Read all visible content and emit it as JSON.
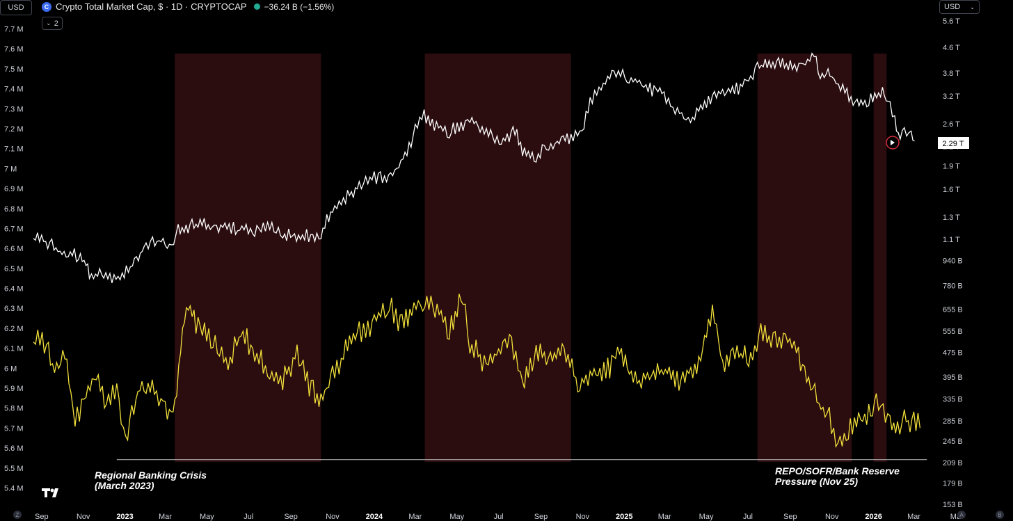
{
  "header": {
    "left_unit": "USD",
    "right_unit": "USD",
    "symbol_title": "Crypto Total Market Cap, $ · 1D · CRYPTOCAP",
    "change_text": "−36.24 B (−1.56%)",
    "collapse_count": "2",
    "icons": [
      "cryptocap-coin-icon",
      "market-status-dot-icon",
      "chevron-down-icon",
      "tradingview-logo-icon"
    ]
  },
  "annotations": {
    "left": [
      "Regional Banking Crisis",
      "(March 2023)"
    ],
    "right": [
      "REPO/SOFR/Bank Reserve",
      "Pressure (Nov 25)"
    ]
  },
  "corner_labels": {
    "bottom_left": "Z",
    "bottom_right_a": "A",
    "bottom_right_b": "B"
  },
  "colors": {
    "white_series": "#ffffff",
    "yellow_series": "#f2e03a",
    "shaded_region": "#2b0d10",
    "last_price_circle": "#d32f3a",
    "background": "#000000"
  },
  "chart_data": {
    "type": "line",
    "x_range": [
      "2022-08-20",
      "2026-03-31"
    ],
    "x_tick_labels": [
      "Sep",
      "Nov",
      "2023",
      "Mar",
      "May",
      "Jul",
      "Sep",
      "Nov",
      "2024",
      "Mar",
      "May",
      "Jul",
      "Sep",
      "Nov",
      "2025",
      "Mar",
      "May",
      "Jul",
      "Sep",
      "Nov",
      "2026",
      "Mar",
      "Ma"
    ],
    "x_tick_dates": [
      "2022-09-01",
      "2022-11-01",
      "2023-01-01",
      "2023-03-01",
      "2023-05-01",
      "2023-07-01",
      "2023-09-01",
      "2023-11-01",
      "2024-01-01",
      "2024-03-01",
      "2024-05-01",
      "2024-07-01",
      "2024-09-01",
      "2024-11-01",
      "2025-01-01",
      "2025-03-01",
      "2025-05-01",
      "2025-07-01",
      "2025-09-01",
      "2025-11-01",
      "2026-01-01",
      "2026-03-01",
      "2026-05-01"
    ],
    "left_axis": {
      "range": [
        5.36,
        7.74
      ],
      "tick_labels": [
        "7.7 M",
        "7.6 M",
        "7.5 M",
        "7.4 M",
        "7.3 M",
        "7.2 M",
        "7.1 M",
        "7 M",
        "6.9 M",
        "6.8 M",
        "6.7 M",
        "6.6 M",
        "6.5 M",
        "6.4 M",
        "6.3 M",
        "6.2 M",
        "6.1 M",
        "6 M",
        "5.9 M",
        "5.8 M",
        "5.7 M",
        "5.6 M",
        "5.5 M",
        "5.4 M"
      ],
      "tick_values": [
        7.7,
        7.6,
        7.5,
        7.4,
        7.3,
        7.2,
        7.1,
        7.0,
        6.9,
        6.8,
        6.7,
        6.6,
        6.5,
        6.4,
        6.3,
        6.2,
        6.1,
        6.0,
        5.9,
        5.8,
        5.7,
        5.6,
        5.5,
        5.4
      ]
    },
    "right_axis": {
      "scale": "log",
      "tick_labels": [
        "5.6 T",
        "4.6 T",
        "3.8 T",
        "3.2 T",
        "2.6 T",
        "2.2 T",
        "1.9 T",
        "1.6 T",
        "1.3 T",
        "1.1 T",
        "940 B",
        "780 B",
        "655 B",
        "555 B",
        "475 B",
        "395 B",
        "335 B",
        "285 B",
        "245 B",
        "209 B",
        "179 B",
        "153 B"
      ],
      "tick_values": [
        5600,
        4600,
        3800,
        3200,
        2600,
        2200,
        1900,
        1600,
        1300,
        1100,
        940,
        780,
        655,
        555,
        475,
        395,
        335,
        285,
        245,
        209,
        179,
        153
      ],
      "last_value_label": "2.29 T"
    },
    "shaded_periods": [
      [
        "2023-03-15",
        "2023-10-15"
      ],
      [
        "2024-03-15",
        "2024-10-15"
      ],
      [
        "2025-07-15",
        "2025-11-30"
      ],
      [
        "2026-01-01",
        "2026-01-20"
      ]
    ],
    "reference_line": {
      "left_axis_value": 5.57,
      "from": "2022-12-20",
      "to": "2026-03-20"
    },
    "series": [
      {
        "axis": "right",
        "color": "#ffffff",
        "x": [
          "2022-08-20",
          "2022-09-10",
          "2022-10-01",
          "2022-10-25",
          "2022-11-05",
          "2022-11-10",
          "2022-12-01",
          "2022-12-25",
          "2023-01-15",
          "2023-02-01",
          "2023-02-20",
          "2023-03-10",
          "2023-03-20",
          "2023-04-15",
          "2023-05-15",
          "2023-06-15",
          "2023-07-10",
          "2023-08-01",
          "2023-08-20",
          "2023-09-15",
          "2023-10-15",
          "2023-11-01",
          "2023-11-20",
          "2023-12-10",
          "2024-01-01",
          "2024-01-25",
          "2024-02-15",
          "2024-03-01",
          "2024-03-14",
          "2024-04-01",
          "2024-04-20",
          "2024-05-10",
          "2024-05-20",
          "2024-06-10",
          "2024-07-05",
          "2024-07-25",
          "2024-08-05",
          "2024-08-25",
          "2024-09-06",
          "2024-09-25",
          "2024-10-15",
          "2024-10-31",
          "2024-11-12",
          "2024-11-25",
          "2024-12-17",
          "2025-01-05",
          "2025-01-20",
          "2025-02-05",
          "2025-02-25",
          "2025-03-10",
          "2025-04-08",
          "2025-04-20",
          "2025-05-10",
          "2025-05-25",
          "2025-06-20",
          "2025-07-05",
          "2025-07-15",
          "2025-08-01",
          "2025-08-15",
          "2025-09-01",
          "2025-09-20",
          "2025-10-06",
          "2025-10-15",
          "2025-11-01",
          "2025-11-20",
          "2025-12-05",
          "2025-12-25",
          "2026-01-14",
          "2026-01-25",
          "2026-02-01",
          "2026-02-06",
          "2026-02-15",
          "2026-02-25",
          "2026-03-02"
        ],
        "values": [
          1080,
          1050,
          960,
          950,
          900,
          820,
          830,
          800,
          900,
          1020,
          1060,
          1020,
          1150,
          1200,
          1180,
          1170,
          1150,
          1180,
          1120,
          1090,
          1120,
          1350,
          1450,
          1600,
          1700,
          1700,
          2000,
          2400,
          2700,
          2500,
          2400,
          2500,
          2600,
          2400,
          2200,
          2400,
          2100,
          2000,
          2100,
          2200,
          2300,
          2400,
          3000,
          3200,
          3700,
          3600,
          3500,
          3300,
          3200,
          2900,
          2600,
          2800,
          3100,
          3200,
          3300,
          3600,
          3900,
          3900,
          4000,
          3900,
          4000,
          4200,
          3700,
          3600,
          3200,
          3000,
          3000,
          3200,
          2900,
          2600,
          2300,
          2400,
          2300,
          2290
        ]
      },
      {
        "axis": "left",
        "color": "#f2e03a",
        "x": [
          "2022-08-20",
          "2022-09-05",
          "2022-09-20",
          "2022-10-05",
          "2022-10-20",
          "2022-11-05",
          "2022-11-20",
          "2022-12-05",
          "2022-12-20",
          "2023-01-02",
          "2023-01-20",
          "2023-02-10",
          "2023-03-01",
          "2023-03-10",
          "2023-03-15",
          "2023-04-01",
          "2023-04-15",
          "2023-05-10",
          "2023-06-01",
          "2023-06-20",
          "2023-07-10",
          "2023-08-01",
          "2023-08-20",
          "2023-09-10",
          "2023-09-25",
          "2023-10-15",
          "2023-11-01",
          "2023-11-20",
          "2023-12-10",
          "2024-01-01",
          "2024-01-20",
          "2024-02-05",
          "2024-02-25",
          "2024-03-15",
          "2024-04-05",
          "2024-04-20",
          "2024-05-10",
          "2024-05-20",
          "2024-06-10",
          "2024-07-01",
          "2024-07-20",
          "2024-08-05",
          "2024-08-25",
          "2024-09-15",
          "2024-10-05",
          "2024-10-25",
          "2024-11-15",
          "2024-12-05",
          "2024-12-25",
          "2025-01-20",
          "2025-02-10",
          "2025-03-05",
          "2025-03-25",
          "2025-04-20",
          "2025-05-10",
          "2025-05-25",
          "2025-06-15",
          "2025-07-05",
          "2025-07-20",
          "2025-08-10",
          "2025-08-25",
          "2025-09-10",
          "2025-09-25",
          "2025-10-10",
          "2025-10-25",
          "2025-11-10",
          "2025-11-25",
          "2025-12-10",
          "2025-12-25",
          "2026-01-05",
          "2026-01-15",
          "2026-01-25",
          "2026-02-05",
          "2026-02-15",
          "2026-03-01",
          "2026-03-10"
        ],
        "values": [
          6.1,
          6.1,
          5.95,
          6.05,
          5.7,
          5.85,
          5.95,
          5.8,
          5.85,
          5.6,
          5.85,
          5.9,
          5.75,
          5.75,
          5.8,
          6.3,
          6.2,
          6.1,
          6.0,
          6.15,
          6.05,
          5.95,
          5.9,
          6.05,
          5.9,
          5.8,
          5.95,
          6.05,
          6.15,
          6.2,
          6.3,
          6.2,
          6.25,
          6.3,
          6.25,
          6.15,
          6.35,
          6.1,
          6.0,
          6.05,
          6.1,
          5.9,
          6.05,
          6.0,
          6.05,
          5.9,
          5.95,
          5.95,
          6.05,
          5.9,
          5.95,
          5.95,
          5.9,
          6.0,
          6.25,
          6.0,
          6.05,
          6.0,
          6.15,
          6.1,
          6.15,
          6.05,
          5.95,
          5.8,
          5.75,
          5.6,
          5.65,
          5.7,
          5.75,
          5.8,
          5.75,
          5.7,
          5.65,
          5.7,
          5.7,
          5.7
        ]
      }
    ]
  }
}
